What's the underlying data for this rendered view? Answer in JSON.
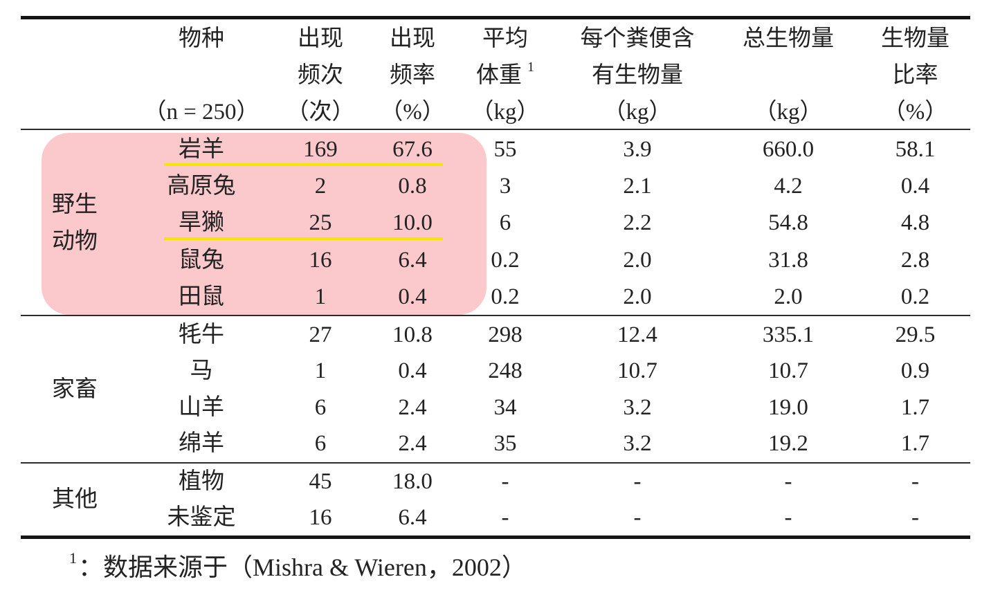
{
  "colors": {
    "highlight": "#fbc8cc",
    "underline": "#f5e600",
    "rule": "#151515",
    "text": "#222222"
  },
  "table": {
    "header": {
      "species": {
        "line1": "物种",
        "line3": "（n = 250）"
      },
      "count": {
        "line1": "出现",
        "line2": "频次",
        "line3": "（次）"
      },
      "rate": {
        "line1": "出现",
        "line2": "频率",
        "line3": "（%）"
      },
      "weight": {
        "line1": "平均",
        "line2": "体重",
        "note": "1",
        "line3": "（kg）"
      },
      "feces_biomass": {
        "line1": "每个粪便含",
        "line2": "有生物量",
        "line3": "（kg）"
      },
      "total_biomass": {
        "line1": "总生物量",
        "line3": "（kg）"
      },
      "biomass_ratio": {
        "line1": "生物量",
        "line2": "比率",
        "line3": "（%）"
      }
    },
    "groups": [
      {
        "label_lines": [
          "野生",
          "动物"
        ],
        "rows": [
          {
            "species": "岩羊",
            "count": "169",
            "rate": "67.6",
            "weight": "55",
            "feces_biomass": "3.9",
            "total_biomass": "660.0",
            "biomass_ratio": "58.1"
          },
          {
            "species": "高原兔",
            "count": "2",
            "rate": "0.8",
            "weight": "3",
            "feces_biomass": "2.1",
            "total_biomass": "4.2",
            "biomass_ratio": "0.4"
          },
          {
            "species": "旱獭",
            "count": "25",
            "rate": "10.0",
            "weight": "6",
            "feces_biomass": "2.2",
            "total_biomass": "54.8",
            "biomass_ratio": "4.8"
          },
          {
            "species": "鼠兔",
            "count": "16",
            "rate": "6.4",
            "weight": "0.2",
            "feces_biomass": "2.0",
            "total_biomass": "31.8",
            "biomass_ratio": "2.8"
          },
          {
            "species": "田鼠",
            "count": "1",
            "rate": "0.4",
            "weight": "0.2",
            "feces_biomass": "2.0",
            "total_biomass": "2.0",
            "biomass_ratio": "0.2"
          }
        ]
      },
      {
        "label_lines": [
          "家畜"
        ],
        "rows": [
          {
            "species": "牦牛",
            "count": "27",
            "rate": "10.8",
            "weight": "298",
            "feces_biomass": "12.4",
            "total_biomass": "335.1",
            "biomass_ratio": "29.5"
          },
          {
            "species": "马",
            "count": "1",
            "rate": "0.4",
            "weight": "248",
            "feces_biomass": "10.7",
            "total_biomass": "10.7",
            "biomass_ratio": "0.9"
          },
          {
            "species": "山羊",
            "count": "6",
            "rate": "2.4",
            "weight": "34",
            "feces_biomass": "3.2",
            "total_biomass": "19.0",
            "biomass_ratio": "1.7"
          },
          {
            "species": "绵羊",
            "count": "6",
            "rate": "2.4",
            "weight": "35",
            "feces_biomass": "3.2",
            "total_biomass": "19.2",
            "biomass_ratio": "1.7"
          }
        ]
      },
      {
        "label_lines": [
          "其他"
        ],
        "rows": [
          {
            "species": "植物",
            "count": "45",
            "rate": "18.0",
            "weight": "-",
            "feces_biomass": "-",
            "total_biomass": "-",
            "biomass_ratio": "-"
          },
          {
            "species": "未鉴定",
            "count": "16",
            "rate": "6.4",
            "weight": "-",
            "feces_biomass": "-",
            "total_biomass": "-",
            "biomass_ratio": "-"
          }
        ]
      }
    ]
  },
  "footnote": {
    "marker": "1",
    "text": "：数据来源于（Mishra & Wieren，2002）"
  }
}
